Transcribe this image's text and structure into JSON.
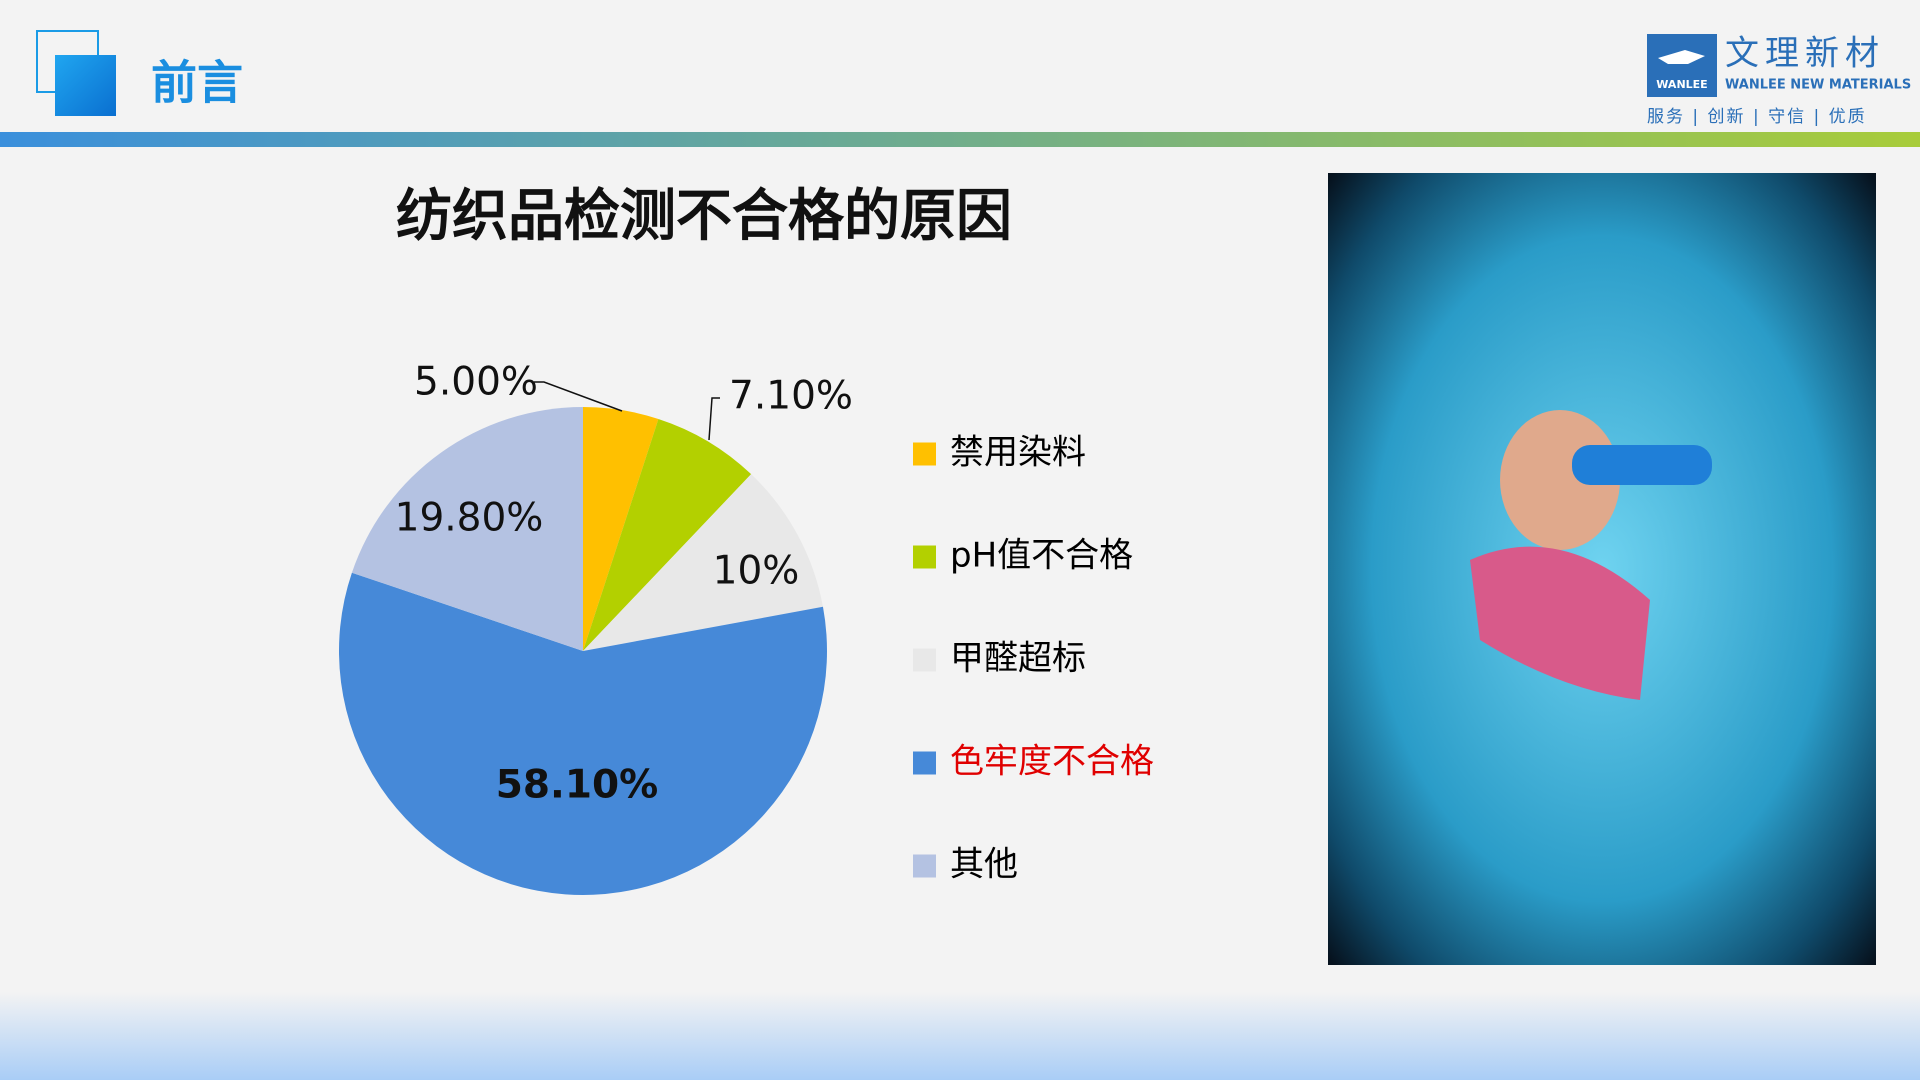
{
  "header": {
    "title": "前言"
  },
  "logo": {
    "badge": "WANLEE",
    "name": "文理新材",
    "english": "WANLEE NEW MATERIALS",
    "slogan": "服务 | 创新 | 守信 | 优质"
  },
  "chart_data": {
    "type": "pie",
    "title": "纺织品检测不合格的原因",
    "categories": [
      "禁用染料",
      "pH值不合格",
      "甲醛超标",
      "色牢度不合格",
      "其他"
    ],
    "values": [
      5,
      7.1,
      10,
      58.1,
      19.8
    ],
    "value_labels": [
      "5.00%",
      "7.10%",
      "10%",
      "58.10%",
      "19.80%"
    ],
    "colors": [
      "#ffc000",
      "#b3d000",
      "#e8e8e8",
      "#4689d8",
      "#b4c2e2"
    ],
    "legend_text_colors": [
      "#000000",
      "#000000",
      "#000000",
      "#e00000",
      "#000000"
    ],
    "value_label_bold": [
      false,
      false,
      false,
      true,
      false
    ],
    "legend": "right"
  }
}
